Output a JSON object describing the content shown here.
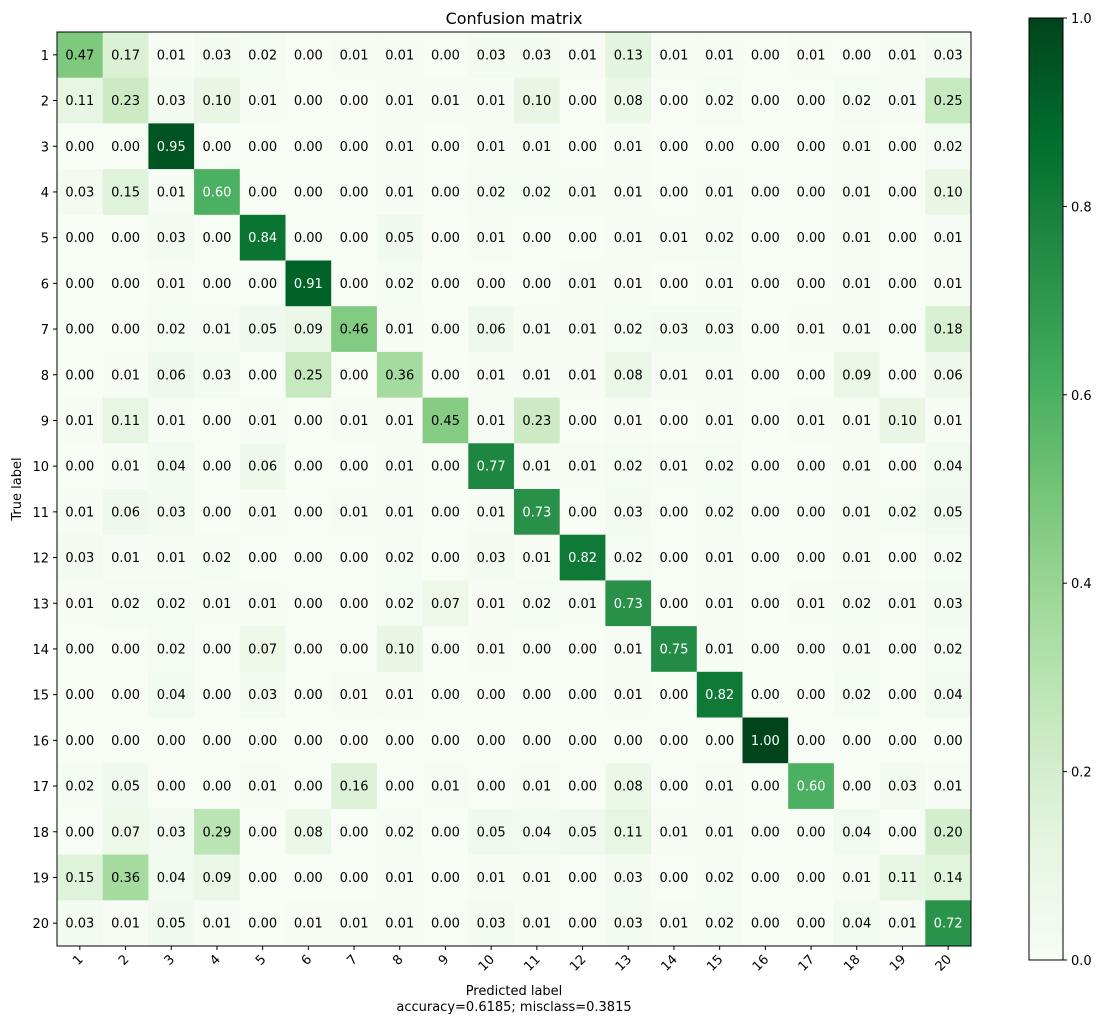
{
  "chart_data": {
    "type": "heatmap",
    "title": "Confusion matrix",
    "xlabel": "Predicted label",
    "ylabel": "True label",
    "footer": "accuracy=0.6185; misclass=0.3815",
    "labels": [
      "1",
      "2",
      "3",
      "4",
      "5",
      "6",
      "7",
      "8",
      "9",
      "10",
      "11",
      "12",
      "13",
      "14",
      "15",
      "16",
      "17",
      "18",
      "19",
      "20"
    ],
    "matrix": [
      [
        0.47,
        0.17,
        0.01,
        0.03,
        0.02,
        0.0,
        0.01,
        0.01,
        0.0,
        0.03,
        0.03,
        0.01,
        0.13,
        0.01,
        0.01,
        0.0,
        0.01,
        0.0,
        0.01,
        0.03
      ],
      [
        0.11,
        0.23,
        0.03,
        0.1,
        0.01,
        0.0,
        0.0,
        0.01,
        0.01,
        0.01,
        0.1,
        0.0,
        0.08,
        0.0,
        0.02,
        0.0,
        0.0,
        0.02,
        0.01,
        0.25
      ],
      [
        0.0,
        0.0,
        0.95,
        0.0,
        0.0,
        0.0,
        0.0,
        0.01,
        0.0,
        0.01,
        0.01,
        0.0,
        0.01,
        0.0,
        0.0,
        0.0,
        0.0,
        0.01,
        0.0,
        0.02
      ],
      [
        0.03,
        0.15,
        0.01,
        0.6,
        0.0,
        0.0,
        0.0,
        0.01,
        0.0,
        0.02,
        0.02,
        0.01,
        0.01,
        0.0,
        0.01,
        0.0,
        0.0,
        0.01,
        0.0,
        0.1
      ],
      [
        0.0,
        0.0,
        0.03,
        0.0,
        0.84,
        0.0,
        0.0,
        0.05,
        0.0,
        0.01,
        0.0,
        0.0,
        0.01,
        0.01,
        0.02,
        0.0,
        0.0,
        0.01,
        0.0,
        0.01
      ],
      [
        0.0,
        0.0,
        0.01,
        0.0,
        0.0,
        0.91,
        0.0,
        0.02,
        0.0,
        0.0,
        0.0,
        0.01,
        0.01,
        0.0,
        0.01,
        0.0,
        0.0,
        0.01,
        0.0,
        0.01
      ],
      [
        0.0,
        0.0,
        0.02,
        0.01,
        0.05,
        0.09,
        0.46,
        0.01,
        0.0,
        0.06,
        0.01,
        0.01,
        0.02,
        0.03,
        0.03,
        0.0,
        0.01,
        0.01,
        0.0,
        0.18
      ],
      [
        0.0,
        0.01,
        0.06,
        0.03,
        0.0,
        0.25,
        0.0,
        0.36,
        0.0,
        0.01,
        0.01,
        0.01,
        0.08,
        0.01,
        0.01,
        0.0,
        0.0,
        0.09,
        0.0,
        0.06
      ],
      [
        0.01,
        0.11,
        0.01,
        0.0,
        0.01,
        0.0,
        0.01,
        0.01,
        0.45,
        0.01,
        0.23,
        0.0,
        0.01,
        0.0,
        0.01,
        0.0,
        0.01,
        0.01,
        0.1,
        0.01
      ],
      [
        0.0,
        0.01,
        0.04,
        0.0,
        0.06,
        0.0,
        0.0,
        0.01,
        0.0,
        0.77,
        0.01,
        0.01,
        0.02,
        0.01,
        0.02,
        0.0,
        0.0,
        0.01,
        0.0,
        0.04
      ],
      [
        0.01,
        0.06,
        0.03,
        0.0,
        0.01,
        0.0,
        0.01,
        0.01,
        0.0,
        0.01,
        0.73,
        0.0,
        0.03,
        0.0,
        0.02,
        0.0,
        0.0,
        0.01,
        0.02,
        0.05
      ],
      [
        0.03,
        0.01,
        0.01,
        0.02,
        0.0,
        0.0,
        0.0,
        0.02,
        0.0,
        0.03,
        0.01,
        0.82,
        0.02,
        0.0,
        0.01,
        0.0,
        0.0,
        0.01,
        0.0,
        0.02
      ],
      [
        0.01,
        0.02,
        0.02,
        0.01,
        0.01,
        0.0,
        0.0,
        0.02,
        0.07,
        0.01,
        0.02,
        0.01,
        0.73,
        0.0,
        0.01,
        0.0,
        0.01,
        0.02,
        0.01,
        0.03
      ],
      [
        0.0,
        0.0,
        0.02,
        0.0,
        0.07,
        0.0,
        0.0,
        0.1,
        0.0,
        0.01,
        0.0,
        0.0,
        0.01,
        0.75,
        0.01,
        0.0,
        0.0,
        0.01,
        0.0,
        0.02
      ],
      [
        0.0,
        0.0,
        0.04,
        0.0,
        0.03,
        0.0,
        0.01,
        0.01,
        0.0,
        0.0,
        0.0,
        0.0,
        0.01,
        0.0,
        0.82,
        0.0,
        0.0,
        0.02,
        0.0,
        0.04
      ],
      [
        0.0,
        0.0,
        0.0,
        0.0,
        0.0,
        0.0,
        0.0,
        0.0,
        0.0,
        0.0,
        0.0,
        0.0,
        0.0,
        0.0,
        0.0,
        1.0,
        0.0,
        0.0,
        0.0,
        0.0
      ],
      [
        0.02,
        0.05,
        0.0,
        0.0,
        0.01,
        0.0,
        0.16,
        0.0,
        0.01,
        0.0,
        0.01,
        0.0,
        0.08,
        0.0,
        0.01,
        0.0,
        0.6,
        0.0,
        0.03,
        0.01
      ],
      [
        0.0,
        0.07,
        0.03,
        0.29,
        0.0,
        0.08,
        0.0,
        0.02,
        0.0,
        0.05,
        0.04,
        0.05,
        0.11,
        0.01,
        0.01,
        0.0,
        0.0,
        0.04,
        0.0,
        0.2
      ],
      [
        0.15,
        0.36,
        0.04,
        0.09,
        0.0,
        0.0,
        0.0,
        0.01,
        0.0,
        0.01,
        0.01,
        0.0,
        0.03,
        0.0,
        0.02,
        0.0,
        0.0,
        0.01,
        0.11,
        0.14
      ],
      [
        0.03,
        0.01,
        0.05,
        0.01,
        0.0,
        0.01,
        0.01,
        0.01,
        0.0,
        0.03,
        0.01,
        0.0,
        0.03,
        0.01,
        0.02,
        0.0,
        0.0,
        0.04,
        0.01,
        0.72
      ]
    ],
    "colorbar": {
      "min": 0.0,
      "max": 1.0,
      "ticks": [
        "0.0",
        "0.2",
        "0.4",
        "0.6",
        "0.8",
        "1.0"
      ],
      "colormap": "Greens",
      "color_low": "#f7fcf5",
      "color_high": "#00441b"
    },
    "text_threshold": 0.5,
    "text_color_dark": "#000000",
    "text_color_light": "#ffffff"
  }
}
